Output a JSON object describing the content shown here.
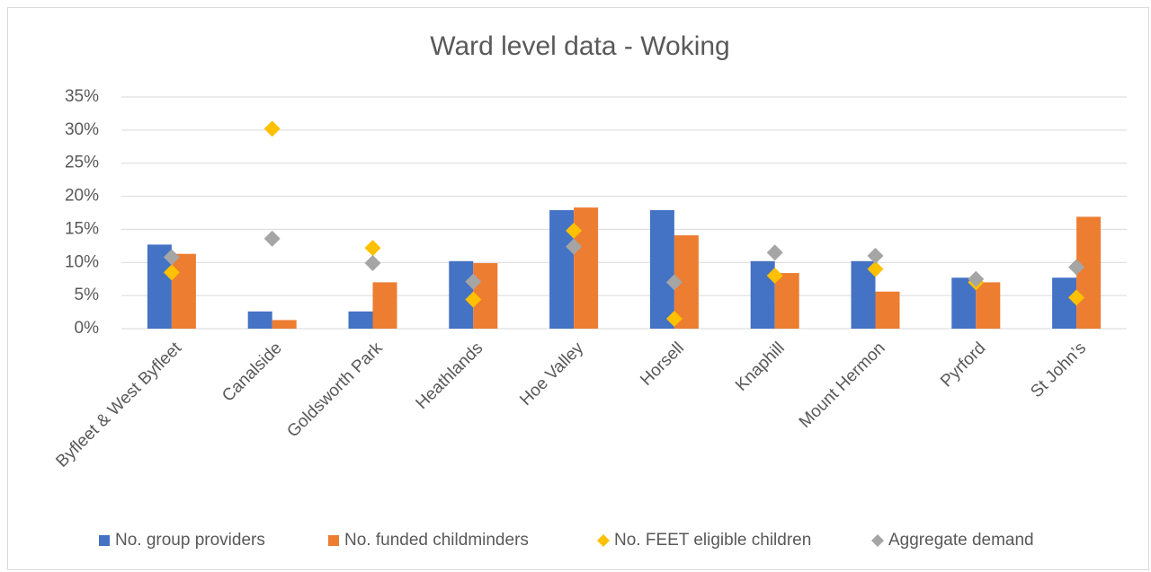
{
  "chart_data": {
    "type": "bar",
    "title": "Ward level data - Woking",
    "categories": [
      "Byfleet & West Byfleet",
      "Canalside",
      "Goldsworth Park",
      "Heathlands",
      "Hoe Valley",
      "Horsell",
      "Knaphill",
      "Mount Hermon",
      "Pyrford",
      "St John’s"
    ],
    "series": [
      {
        "name": "No. group providers",
        "type": "bar",
        "color": "#4472c4",
        "values": [
          12.7,
          2.6,
          2.6,
          10.2,
          17.9,
          17.9,
          10.2,
          10.2,
          7.7,
          7.7
        ]
      },
      {
        "name": "No. funded childminders",
        "type": "bar",
        "color": "#ed7d31",
        "values": [
          11.3,
          1.3,
          7.0,
          9.9,
          18.3,
          14.1,
          8.4,
          5.6,
          7.0,
          16.9
        ]
      },
      {
        "name": "No. FEET eligible children",
        "type": "scatter",
        "color": "#ffc000",
        "values": [
          8.5,
          30.2,
          12.2,
          4.4,
          14.8,
          1.5,
          8.0,
          9.0,
          7.0,
          4.7
        ]
      },
      {
        "name": "Aggregate demand",
        "type": "scatter",
        "color": "#a5a5a5",
        "values": [
          10.8,
          13.6,
          9.9,
          7.1,
          12.4,
          7.0,
          11.5,
          11.0,
          7.5,
          9.3
        ]
      }
    ],
    "ylim": [
      0,
      35
    ],
    "yticks": [
      {
        "value": 0,
        "label": "0%"
      },
      {
        "value": 5,
        "label": "5%"
      },
      {
        "value": 10,
        "label": "10%"
      },
      {
        "value": 15,
        "label": "15%"
      },
      {
        "value": 20,
        "label": "20%"
      },
      {
        "value": 25,
        "label": "25%"
      },
      {
        "value": 30,
        "label": "30%"
      },
      {
        "value": 35,
        "label": "35%"
      }
    ],
    "grid": true,
    "legend": "bottom"
  }
}
